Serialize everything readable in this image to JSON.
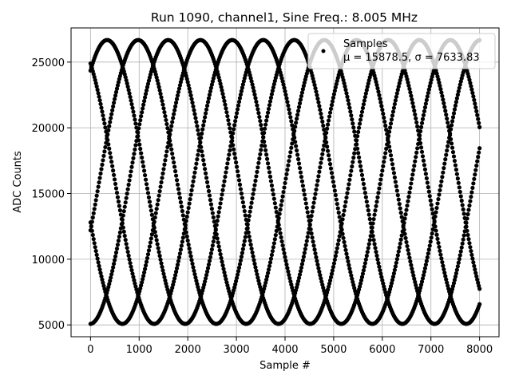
{
  "chart_data": {
    "type": "scatter",
    "title": "Run 1090, channel1, Sine Freq.: 8.005 MHz",
    "xlabel": "Sample #",
    "ylabel": "ADC Counts",
    "xlim": [
      -400,
      8400
    ],
    "ylim": [
      4100,
      27600
    ],
    "xticks": [
      0,
      1000,
      2000,
      3000,
      4000,
      5000,
      6000,
      7000,
      8000
    ],
    "yticks": [
      5000,
      10000,
      15000,
      20000,
      25000
    ],
    "grid": true,
    "marker_color": "#000000",
    "legend": {
      "placement": "top-right",
      "entries": [
        {
          "label": "Samples",
          "stats": "μ = 15878.5, σ = 7633.83"
        }
      ]
    },
    "series": [
      {
        "name": "Samples",
        "description_free_data": true,
        "x_range": [
          0,
          8000
        ],
        "waveform": {
          "mean": 15878.5,
          "amplitude": 10800,
          "period_samples": 3210
        },
        "phases_at_x0": [
          {
            "y_at_x0": 24900,
            "direction": "down"
          },
          {
            "y_at_x0": 24350,
            "direction": "up"
          },
          {
            "y_at_x0": 12800,
            "direction": "down"
          },
          {
            "y_at_x0": 12200,
            "direction": "up"
          },
          {
            "y_at_x0": 5080,
            "direction": "up"
          }
        ]
      }
    ]
  }
}
